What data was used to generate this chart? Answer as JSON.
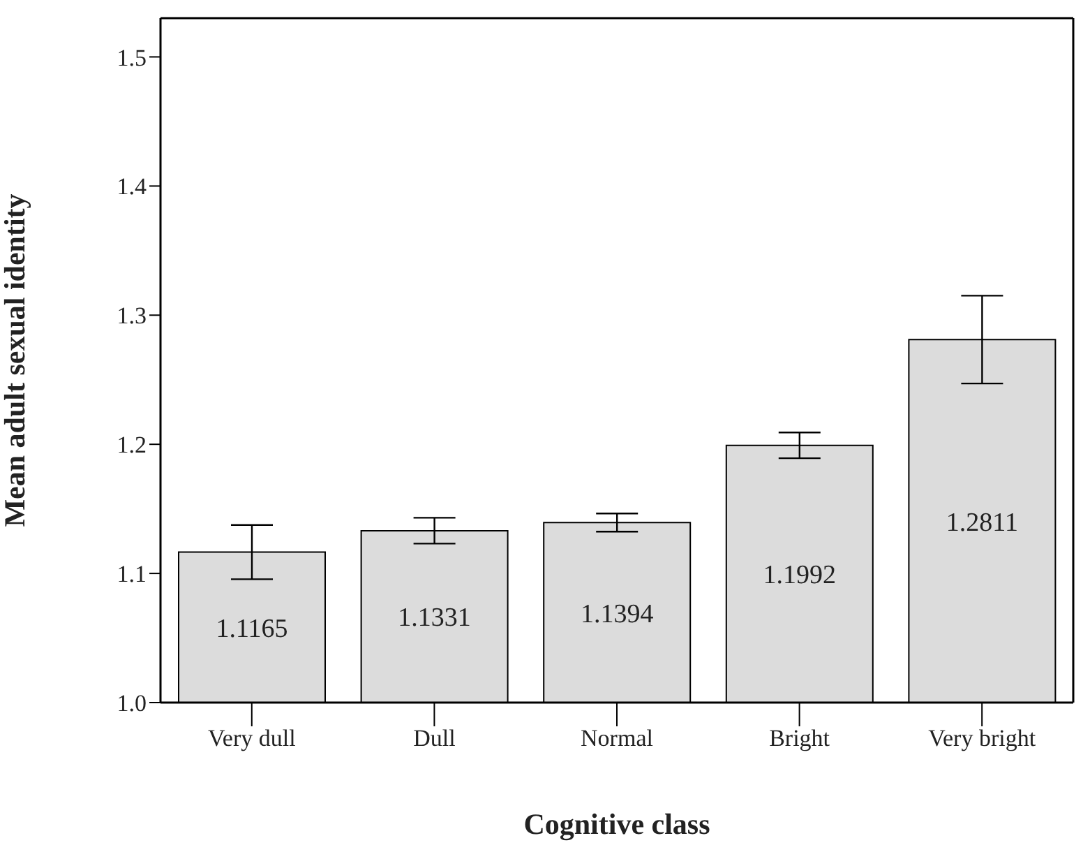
{
  "chart_data": {
    "type": "bar",
    "xlabel": "Cognitive class",
    "ylabel": "Mean adult sexual identity",
    "categories": [
      "Very dull",
      "Dull",
      "Normal",
      "Bright",
      "Very bright"
    ],
    "values": [
      1.1165,
      1.1331,
      1.1394,
      1.1992,
      1.2811
    ],
    "errors": [
      0.021,
      0.01,
      0.007,
      0.01,
      0.034
    ],
    "color": "#dcdcdc",
    "ylim": [
      1.0,
      1.53
    ],
    "yticks": [
      {
        "value": 1.0,
        "label": "1.0"
      },
      1.1,
      1.2,
      1.3,
      1.4,
      1.5
    ],
    "data_labels": true,
    "grid": false
  }
}
